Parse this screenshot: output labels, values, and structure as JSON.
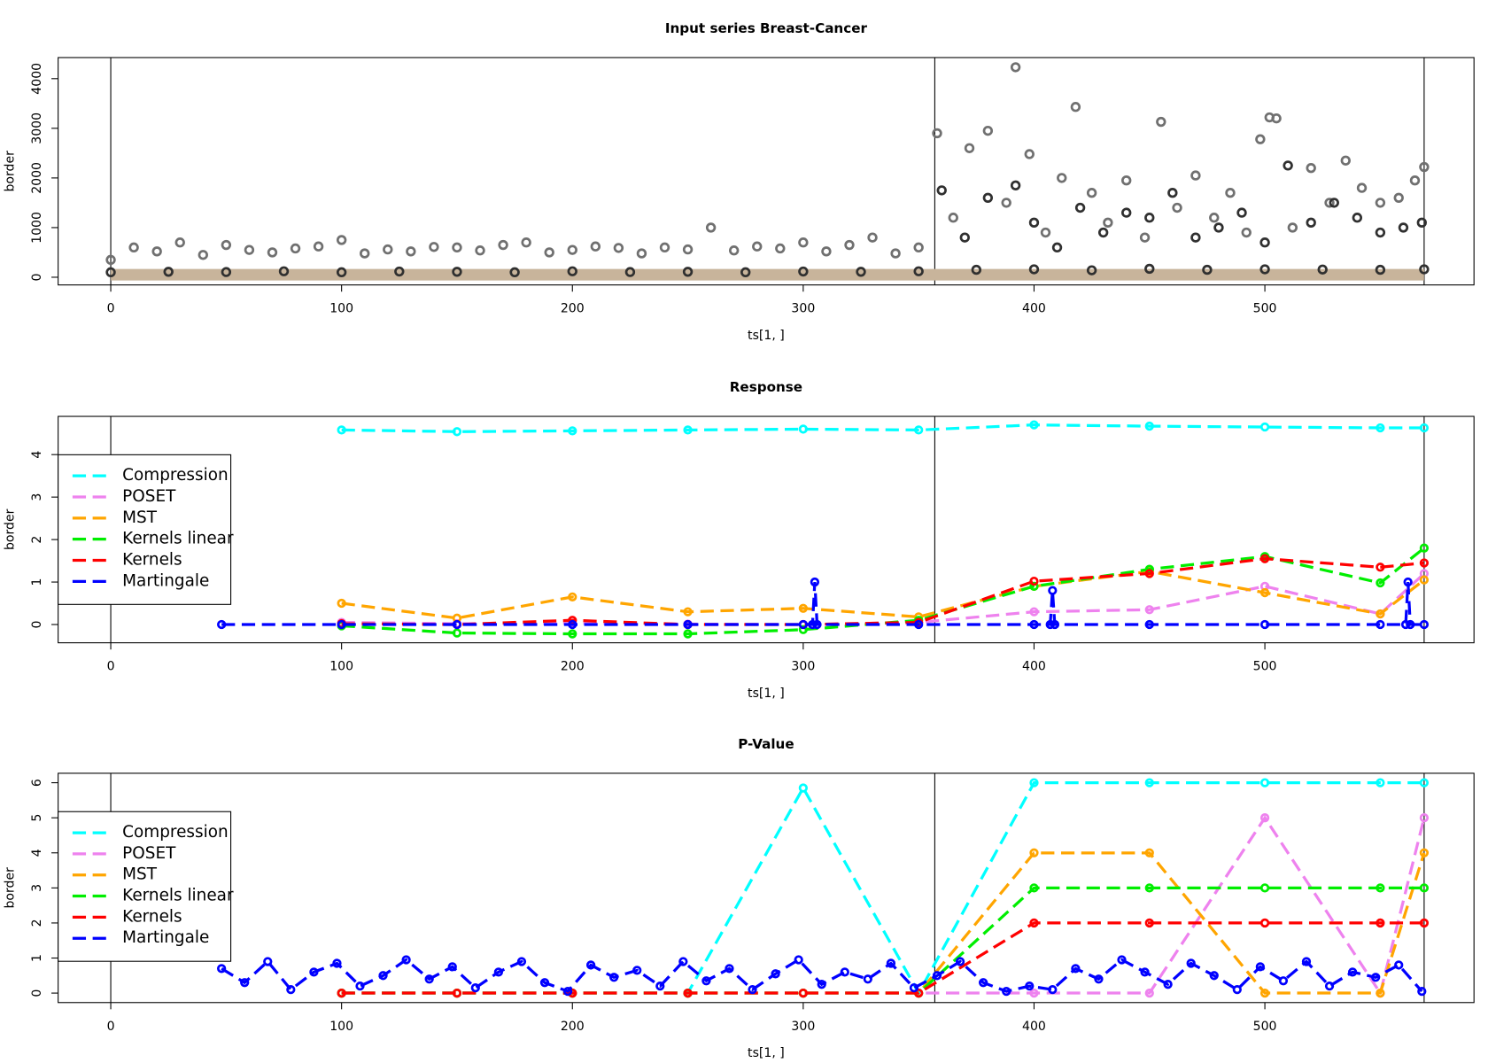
{
  "chart_data": [
    {
      "type": "scatter",
      "title": "Input series Breast-Cancer",
      "x_label": "ts[1, ]",
      "y_label": "border",
      "xlim": [
        -22.8,
        590.6
      ],
      "ylim": [
        -155,
        4425
      ],
      "xticks": [
        0,
        100,
        200,
        300,
        400,
        500
      ],
      "yticks": [
        0,
        1000,
        2000,
        3000,
        4000
      ],
      "vlines": [
        0,
        357,
        569
      ],
      "series": [
        {
          "color": "#c8b49b",
          "style": "band",
          "x": [
            0,
            100,
            200,
            300,
            357,
            400,
            500,
            569
          ],
          "values": [
            50,
            50,
            50,
            50,
            50,
            50,
            50,
            50
          ]
        },
        {
          "color": "#707070",
          "style": "points",
          "x": [
            0,
            10,
            20,
            30,
            40,
            50,
            60,
            70,
            80,
            90,
            100,
            110,
            120,
            130,
            140,
            150,
            160,
            170,
            180,
            190,
            200,
            210,
            220,
            230,
            240,
            250,
            260,
            270,
            280,
            290,
            300,
            310,
            320,
            330,
            340,
            350
          ],
          "values": [
            350,
            600,
            520,
            700,
            450,
            650,
            550,
            500,
            580,
            620,
            750,
            480,
            560,
            520,
            610,
            600,
            540,
            650,
            700,
            500,
            550,
            620,
            590,
            480,
            600,
            560,
            1000,
            540,
            620,
            580,
            700,
            520,
            650,
            800,
            480,
            600
          ]
        },
        {
          "color": "#707070",
          "style": "points",
          "x": [
            358,
            365,
            372,
            380,
            388,
            392,
            398,
            405,
            412,
            418,
            425,
            432,
            440,
            448,
            455,
            462,
            470,
            478,
            485,
            492,
            498,
            502,
            505,
            512,
            520,
            528,
            535,
            542,
            550,
            558,
            565,
            569
          ],
          "values": [
            2900,
            1200,
            2600,
            2950,
            1500,
            4230,
            2480,
            900,
            2000,
            3430,
            1700,
            1100,
            1950,
            800,
            3130,
            1400,
            2050,
            1200,
            1700,
            900,
            2780,
            3220,
            3200,
            1000,
            2200,
            1500,
            2350,
            1800,
            1500,
            1600,
            1950,
            2220
          ]
        },
        {
          "color": "#303030",
          "style": "points",
          "x": [
            0,
            25,
            50,
            75,
            100,
            125,
            150,
            175,
            200,
            225,
            250,
            275,
            300,
            325,
            350,
            375,
            400,
            425,
            450,
            475,
            500,
            525,
            550,
            569
          ],
          "values": [
            100,
            110,
            105,
            120,
            100,
            115,
            110,
            100,
            120,
            105,
            110,
            100,
            115,
            110,
            120,
            150,
            160,
            140,
            170,
            150,
            160,
            155,
            150,
            160
          ]
        },
        {
          "color": "#303030",
          "style": "points",
          "x": [
            360,
            370,
            380,
            392,
            400,
            410,
            420,
            430,
            440,
            450,
            460,
            470,
            480,
            490,
            500,
            510,
            520,
            530,
            540,
            550,
            560,
            568
          ],
          "values": [
            1750,
            800,
            1600,
            1850,
            1100,
            600,
            1400,
            900,
            1300,
            1200,
            1700,
            800,
            1000,
            1300,
            700,
            2250,
            1100,
            1500,
            1200,
            900,
            1000,
            1100
          ]
        }
      ]
    },
    {
      "type": "line",
      "title": "Response",
      "x_label": "ts[1, ]",
      "y_label": "border",
      "xlim": [
        -22.8,
        590.6
      ],
      "ylim": [
        -0.43,
        4.9
      ],
      "xticks": [
        0,
        100,
        200,
        300,
        400,
        500
      ],
      "yticks": [
        0,
        1,
        2,
        3,
        4
      ],
      "vlines": [
        0,
        357,
        569
      ],
      "legend": "left",
      "series": [
        {
          "name": "Compression",
          "color": "#00ffff",
          "x": [
            100,
            150,
            200,
            250,
            300,
            350,
            400,
            450,
            500,
            550,
            569
          ],
          "values": [
            4.58,
            4.54,
            4.56,
            4.58,
            4.6,
            4.58,
            4.7,
            4.67,
            4.65,
            4.63,
            4.63
          ]
        },
        {
          "name": "POSET",
          "color": "#ee82ee",
          "x": [
            100,
            150,
            200,
            250,
            300,
            350,
            400,
            450,
            500,
            550,
            569
          ],
          "values": [
            0.05,
            0.02,
            0.03,
            0.01,
            0,
            0.05,
            0.3,
            0.35,
            0.9,
            0.25,
            1.2
          ]
        },
        {
          "name": "MST",
          "color": "#ffa500",
          "x": [
            100,
            150,
            200,
            250,
            300,
            350,
            400,
            450,
            500,
            550,
            569
          ],
          "values": [
            0.5,
            0.15,
            0.65,
            0.3,
            0.38,
            0.18,
            0.9,
            1.25,
            0.75,
            0.25,
            1.05
          ]
        },
        {
          "name": "Kernels linear",
          "color": "#00ee00",
          "x": [
            100,
            150,
            200,
            250,
            300,
            350,
            400,
            450,
            500,
            550,
            569
          ],
          "values": [
            -0.03,
            -0.2,
            -0.22,
            -0.22,
            -0.12,
            0.1,
            0.9,
            1.3,
            1.6,
            0.98,
            1.8
          ]
        },
        {
          "name": "Kernels",
          "color": "#ff0000",
          "x": [
            100,
            150,
            200,
            250,
            300,
            350,
            400,
            450,
            500,
            550,
            569
          ],
          "values": [
            0.02,
            0,
            0.1,
            0,
            0,
            0.05,
            1.02,
            1.2,
            1.55,
            1.35,
            1.45
          ]
        },
        {
          "name": "Martingale",
          "color": "#0000ff",
          "x": [
            48,
            100,
            150,
            200,
            250,
            300,
            304,
            305,
            306,
            350,
            400,
            407,
            408,
            409,
            450,
            500,
            550,
            561,
            562,
            563,
            569
          ],
          "values": [
            0,
            0,
            0,
            0,
            0,
            0,
            0,
            1,
            0,
            0,
            0,
            0,
            0.8,
            0,
            0,
            0,
            0,
            0,
            1,
            0,
            0
          ]
        }
      ]
    },
    {
      "type": "line",
      "title": "P-Value",
      "x_label": "ts[1, ]",
      "y_label": "border",
      "xlim": [
        -22.8,
        590.6
      ],
      "ylim": [
        -0.27,
        6.27
      ],
      "xticks": [
        0,
        100,
        200,
        300,
        400,
        500
      ],
      "yticks": [
        0,
        1,
        2,
        3,
        4,
        5,
        6
      ],
      "vlines": [
        0,
        357,
        569
      ],
      "legend": "left",
      "series": [
        {
          "name": "Compression",
          "color": "#00ffff",
          "x": [
            100,
            150,
            200,
            250,
            300,
            350,
            400,
            450,
            500,
            550,
            569
          ],
          "values": [
            0,
            0,
            0,
            0,
            5.85,
            0,
            6,
            6,
            6,
            6,
            6
          ]
        },
        {
          "name": "POSET",
          "color": "#ee82ee",
          "x": [
            100,
            150,
            200,
            250,
            300,
            350,
            400,
            450,
            500,
            550,
            569
          ],
          "values": [
            0,
            0,
            0,
            0,
            0,
            0,
            0,
            0,
            5,
            0,
            5
          ]
        },
        {
          "name": "MST",
          "color": "#ffa500",
          "x": [
            100,
            150,
            200,
            250,
            300,
            350,
            400,
            450,
            500,
            550,
            569
          ],
          "values": [
            0,
            0,
            0,
            0,
            0,
            0,
            4,
            4,
            0,
            0,
            4
          ]
        },
        {
          "name": "Kernels linear",
          "color": "#00ee00",
          "x": [
            100,
            150,
            200,
            250,
            300,
            350,
            400,
            450,
            500,
            550,
            569
          ],
          "values": [
            0,
            0,
            0,
            0,
            0,
            0,
            3,
            3,
            3,
            3,
            3
          ]
        },
        {
          "name": "Kernels",
          "color": "#ff0000",
          "x": [
            100,
            150,
            200,
            250,
            300,
            350,
            400,
            450,
            500,
            550,
            569
          ],
          "values": [
            0,
            0,
            0,
            0,
            0,
            0,
            2,
            2,
            2,
            2,
            2
          ]
        },
        {
          "name": "Martingale",
          "color": "#0000ff",
          "x": [
            48,
            58,
            68,
            78,
            88,
            98,
            108,
            118,
            128,
            138,
            148,
            158,
            168,
            178,
            188,
            198,
            208,
            218,
            228,
            238,
            248,
            258,
            268,
            278,
            288,
            298,
            308,
            318,
            328,
            338,
            348,
            358,
            368,
            378,
            388,
            398,
            408,
            418,
            428,
            438,
            448,
            458,
            468,
            478,
            488,
            498,
            508,
            518,
            528,
            538,
            548,
            558,
            568
          ],
          "values": [
            0.7,
            0.3,
            0.9,
            0.1,
            0.6,
            0.85,
            0.2,
            0.5,
            0.95,
            0.4,
            0.75,
            0.15,
            0.6,
            0.9,
            0.3,
            0.05,
            0.8,
            0.45,
            0.65,
            0.2,
            0.9,
            0.35,
            0.7,
            0.1,
            0.55,
            0.95,
            0.25,
            0.6,
            0.4,
            0.85,
            0.15,
            0.5,
            0.9,
            0.3,
            0.05,
            0.2,
            0.1,
            0.7,
            0.4,
            0.95,
            0.6,
            0.25,
            0.85,
            0.5,
            0.1,
            0.75,
            0.35,
            0.9,
            0.2,
            0.6,
            0.45,
            0.8,
            0.05
          ]
        }
      ]
    }
  ]
}
